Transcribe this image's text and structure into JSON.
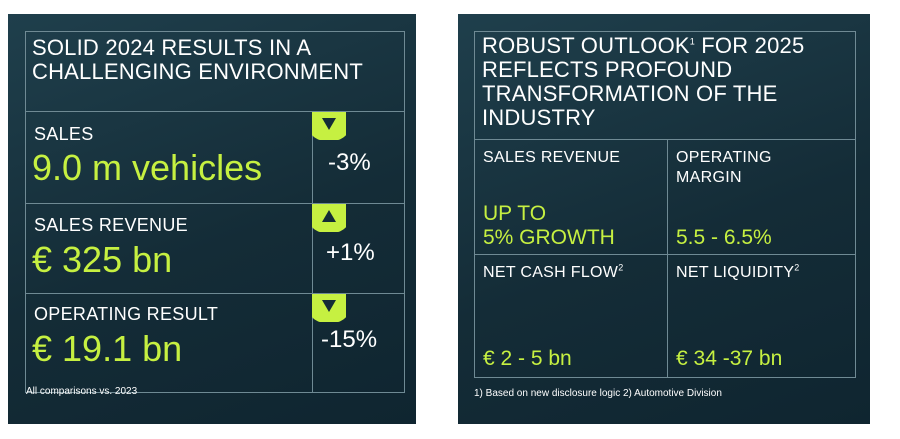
{
  "left": {
    "title": "SOLID 2024 RESULTS IN A\nCHALLENGING ENVIRONMENT",
    "rows": [
      {
        "label": "SALES",
        "value": "9.0 m vehicles",
        "change": "-3%",
        "direction": "down"
      },
      {
        "label": "SALES REVENUE",
        "value": "€ 325 bn",
        "change": "+1%",
        "direction": "up"
      },
      {
        "label": "OPERATING RESULT",
        "value": "€ 19.1 bn",
        "change": "-15%",
        "direction": "down"
      }
    ],
    "footnote": "All comparisons vs. 2023"
  },
  "right": {
    "title_part1": "ROBUST OUTLOOK",
    "title_sup": "1",
    "title_part2": " FOR 2025\nREFLECTS PROFOUND\nTRANSFORMATION OF THE\nINDUSTRY",
    "cells": [
      {
        "label": "SALES REVENUE",
        "sup": "",
        "value": "UP TO\n5% GROWTH"
      },
      {
        "label": "OPERATING\nMARGIN",
        "sup": "",
        "value": "5.5 - 6.5%"
      },
      {
        "label": "NET CASH FLOW",
        "sup": "2",
        "value": "€ 2 - 5 bn"
      },
      {
        "label": "NET LIQUIDITY",
        "sup": "2",
        "value": "€ 34 -37 bn"
      }
    ],
    "footnote": "1) Based on new disclosure logic  2) Automotive Division"
  },
  "colors": {
    "accent": "#c6f041",
    "panel": "#1a3440",
    "text": "#ffffff",
    "lines": "#6f8a94"
  }
}
